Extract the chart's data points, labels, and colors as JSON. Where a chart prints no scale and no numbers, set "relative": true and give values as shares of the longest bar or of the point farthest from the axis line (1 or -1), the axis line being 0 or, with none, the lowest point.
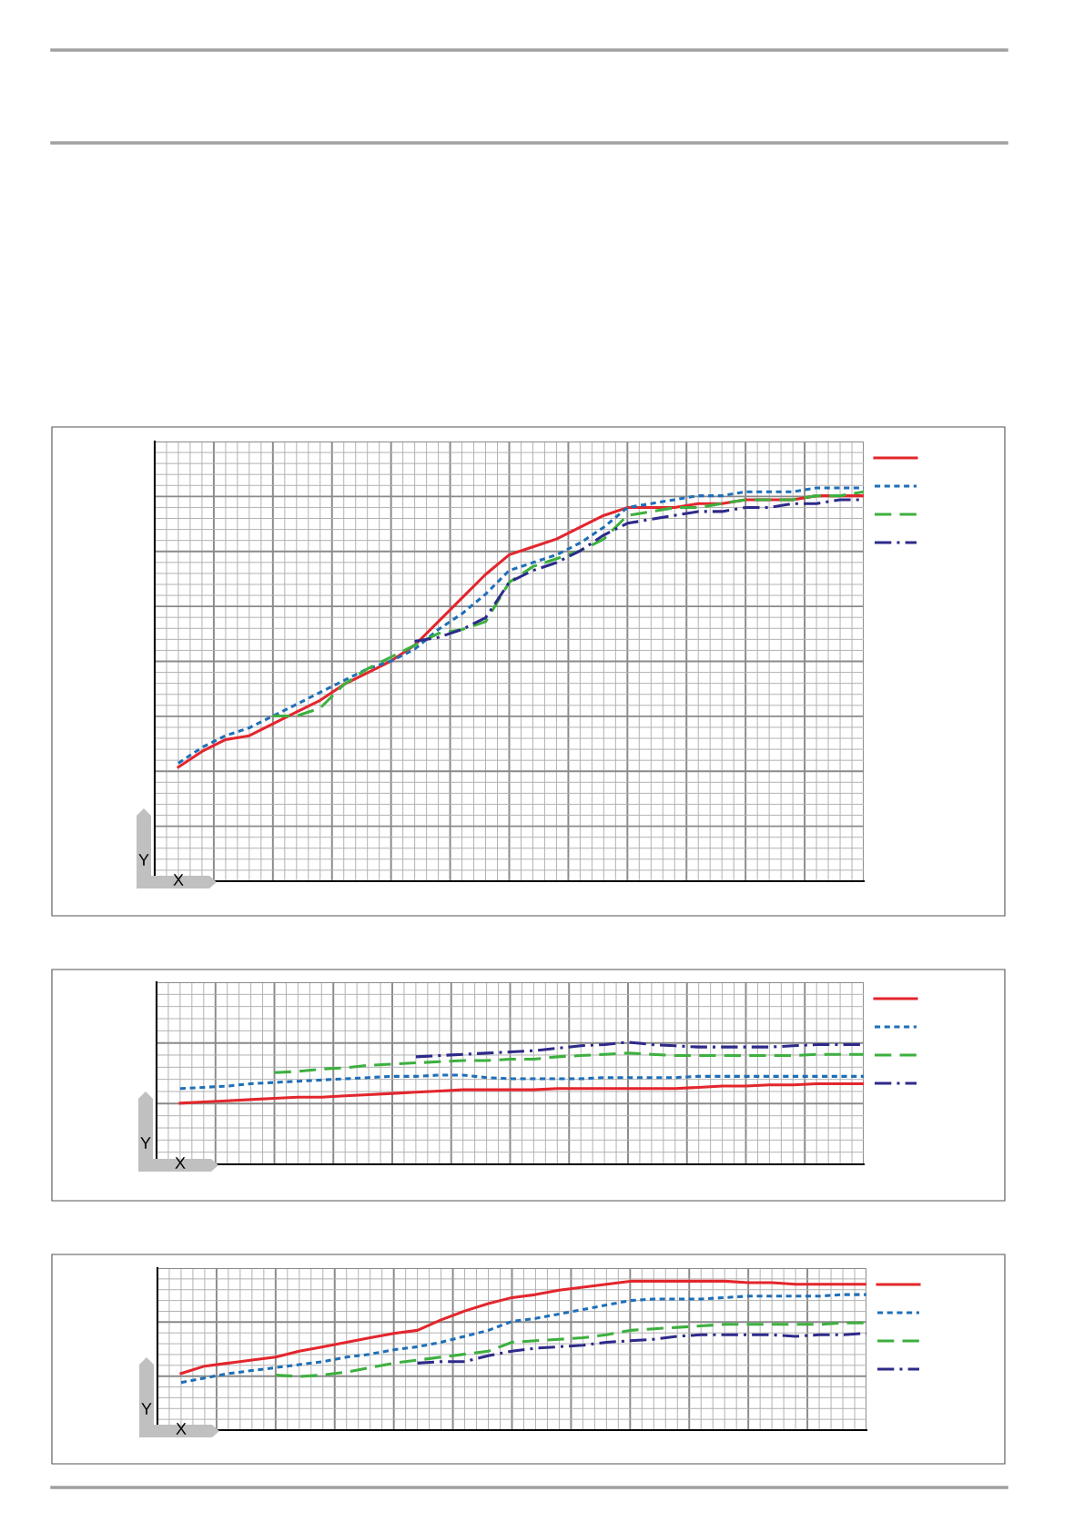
{
  "chart_data": [
    {
      "type": "line",
      "relative": true,
      "xlabel": "X",
      "ylabel": "Y",
      "grid": true,
      "categories": [
        null,
        null,
        null,
        null,
        null,
        null,
        null,
        null,
        null,
        null,
        null,
        null,
        null,
        null,
        null,
        null,
        null,
        null,
        null,
        null,
        null,
        null,
        null,
        null,
        null,
        null,
        null,
        null,
        null,
        null,
        null
      ],
      "series": [
        {
          "color": "#e3262d",
          "line_style": "solid",
          "values": [
            null,
            0.29,
            0.33,
            0.36,
            0.37,
            0.4,
            0.43,
            0.46,
            0.5,
            0.53,
            0.56,
            0.6,
            0.66,
            0.72,
            0.78,
            0.83,
            0.85,
            0.87,
            0.9,
            0.93,
            0.95,
            0.95,
            0.95,
            0.96,
            0.96,
            0.97,
            0.97,
            0.97,
            0.98,
            0.98,
            0.98
          ]
        },
        {
          "color": "#1f6fb8",
          "line_style": "dotted",
          "values": [
            null,
            0.3,
            0.34,
            0.37,
            0.39,
            0.42,
            0.45,
            0.48,
            0.51,
            0.54,
            0.56,
            0.59,
            0.64,
            0.68,
            0.73,
            0.79,
            0.81,
            0.83,
            0.86,
            0.9,
            0.95,
            0.96,
            0.97,
            0.98,
            0.98,
            0.99,
            0.99,
            0.99,
            1.0,
            1.0,
            1.0
          ]
        },
        {
          "color": "#3db03f",
          "line_style": "dashed",
          "values": [
            null,
            null,
            null,
            null,
            null,
            0.42,
            0.42,
            0.44,
            0.5,
            0.54,
            0.57,
            0.6,
            0.63,
            0.64,
            0.66,
            0.76,
            0.8,
            0.82,
            0.84,
            0.87,
            0.93,
            0.94,
            0.95,
            0.95,
            0.96,
            0.97,
            0.97,
            0.97,
            0.98,
            0.98,
            0.99
          ]
        },
        {
          "color": "#2e2a8a",
          "line_style": "dashdot",
          "values": [
            null,
            null,
            null,
            null,
            null,
            null,
            null,
            null,
            null,
            null,
            null,
            0.61,
            0.62,
            0.64,
            0.67,
            0.76,
            0.79,
            0.81,
            0.84,
            0.88,
            0.91,
            0.92,
            0.93,
            0.94,
            0.94,
            0.95,
            0.95,
            0.96,
            0.96,
            0.97,
            0.97
          ]
        }
      ]
    },
    {
      "type": "line",
      "relative": true,
      "xlabel": "X",
      "ylabel": "Y",
      "grid": true,
      "categories": [
        null,
        null,
        null,
        null,
        null,
        null,
        null,
        null,
        null,
        null,
        null,
        null,
        null,
        null,
        null,
        null,
        null,
        null,
        null,
        null,
        null,
        null,
        null,
        null,
        null,
        null,
        null,
        null,
        null,
        null,
        null
      ],
      "series": [
        {
          "color": "#e3262d",
          "line_style": "solid",
          "values": [
            null,
            0.5,
            0.51,
            0.52,
            0.53,
            0.54,
            0.55,
            0.55,
            0.56,
            0.57,
            0.58,
            0.59,
            0.6,
            0.61,
            0.61,
            0.61,
            0.61,
            0.62,
            0.62,
            0.62,
            0.62,
            0.62,
            0.62,
            0.63,
            0.64,
            0.64,
            0.65,
            0.65,
            0.66,
            0.66,
            0.66
          ]
        },
        {
          "color": "#1f6fb8",
          "line_style": "dotted",
          "values": [
            null,
            0.62,
            0.63,
            0.64,
            0.66,
            0.67,
            0.68,
            0.69,
            0.7,
            0.71,
            0.72,
            0.72,
            0.73,
            0.73,
            0.71,
            0.7,
            0.7,
            0.7,
            0.7,
            0.71,
            0.71,
            0.71,
            0.71,
            0.72,
            0.72,
            0.72,
            0.72,
            0.72,
            0.72,
            0.72,
            0.72
          ]
        },
        {
          "color": "#3db03f",
          "line_style": "dashed",
          "values": [
            null,
            null,
            null,
            null,
            null,
            0.75,
            0.76,
            0.78,
            0.79,
            0.81,
            0.82,
            0.83,
            0.84,
            0.85,
            0.85,
            0.86,
            0.86,
            0.88,
            0.89,
            0.9,
            0.91,
            0.9,
            0.89,
            0.89,
            0.89,
            0.89,
            0.89,
            0.89,
            0.9,
            0.9,
            0.9
          ]
        },
        {
          "color": "#2e2a8a",
          "line_style": "dashdot",
          "values": [
            null,
            null,
            null,
            null,
            null,
            null,
            null,
            null,
            null,
            null,
            null,
            0.88,
            0.89,
            0.9,
            0.91,
            0.92,
            0.93,
            0.95,
            0.97,
            0.98,
            1.0,
            0.98,
            0.97,
            0.96,
            0.96,
            0.96,
            0.96,
            0.97,
            0.98,
            0.98,
            0.98
          ]
        }
      ]
    },
    {
      "type": "line",
      "relative": true,
      "xlabel": "X",
      "ylabel": "Y",
      "grid": true,
      "categories": [
        null,
        null,
        null,
        null,
        null,
        null,
        null,
        null,
        null,
        null,
        null,
        null,
        null,
        null,
        null,
        null,
        null,
        null,
        null,
        null,
        null,
        null,
        null,
        null,
        null,
        null,
        null,
        null,
        null,
        null,
        null
      ],
      "series": [
        {
          "color": "#e3262d",
          "line_style": "solid",
          "values": [
            null,
            0.38,
            0.43,
            0.45,
            0.47,
            0.49,
            0.53,
            0.56,
            0.59,
            0.62,
            0.65,
            0.67,
            0.74,
            0.8,
            0.85,
            0.89,
            0.91,
            0.94,
            0.96,
            0.98,
            1.0,
            1.0,
            1.0,
            1.0,
            1.0,
            0.99,
            0.99,
            0.98,
            0.98,
            0.98,
            0.98
          ]
        },
        {
          "color": "#1f6fb8",
          "line_style": "dotted",
          "values": [
            null,
            0.32,
            0.35,
            0.38,
            0.4,
            0.42,
            0.44,
            0.46,
            0.49,
            0.51,
            0.54,
            0.56,
            0.59,
            0.63,
            0.67,
            0.73,
            0.75,
            0.78,
            0.81,
            0.84,
            0.87,
            0.88,
            0.88,
            0.88,
            0.89,
            0.9,
            0.9,
            0.9,
            0.9,
            0.91,
            0.91
          ]
        },
        {
          "color": "#3db03f",
          "line_style": "dashed",
          "values": [
            null,
            null,
            null,
            null,
            null,
            0.37,
            0.36,
            0.37,
            0.39,
            0.42,
            0.45,
            0.47,
            0.49,
            0.51,
            0.53,
            0.59,
            0.6,
            0.61,
            0.62,
            0.64,
            0.67,
            0.68,
            0.69,
            0.7,
            0.71,
            0.71,
            0.71,
            0.71,
            0.71,
            0.72,
            0.72
          ]
        },
        {
          "color": "#2e2a8a",
          "line_style": "dashdot",
          "values": [
            null,
            null,
            null,
            null,
            null,
            null,
            null,
            null,
            null,
            null,
            null,
            0.45,
            0.46,
            0.46,
            0.5,
            0.53,
            0.55,
            0.56,
            0.57,
            0.59,
            0.6,
            0.61,
            0.63,
            0.64,
            0.64,
            0.64,
            0.64,
            0.63,
            0.64,
            0.64,
            0.65
          ]
        }
      ]
    }
  ]
}
